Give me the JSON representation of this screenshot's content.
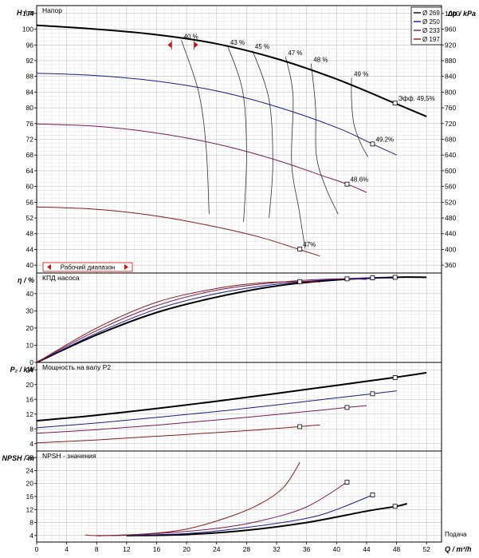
{
  "chart_data": {
    "type": "line",
    "x_axis": {
      "label": "Q / m³/h",
      "caption": "Подача",
      "range": [
        0,
        54
      ],
      "ticks": [
        0,
        4,
        8,
        12,
        16,
        20,
        24,
        28,
        32,
        36,
        40,
        44,
        48,
        52
      ]
    },
    "legend": {
      "placement": "top-right",
      "entries": [
        {
          "label": "Ø 269",
          "color": "#000000"
        },
        {
          "label": "Ø 250",
          "color": "#1c1c8c"
        },
        {
          "label": "Ø 233",
          "color": "#7a1a5a"
        },
        {
          "label": "Ø 197",
          "color": "#8b1a1a"
        }
      ]
    },
    "panels": [
      {
        "id": "head",
        "title": "Напор",
        "ylabel": "H / m",
        "y2label": "Δp / kPa",
        "ylim": [
          38,
          106
        ],
        "y_ticks": [
          40,
          44,
          48,
          52,
          56,
          60,
          64,
          68,
          72,
          76,
          80,
          84,
          88,
          92,
          96,
          100,
          104
        ],
        "y2_ticks": [
          360,
          400,
          440,
          480,
          520,
          560,
          600,
          640,
          680,
          720,
          760,
          800,
          840,
          880,
          920,
          960,
          1000
        ],
        "series": [
          {
            "name": "Ø 269",
            "color": "#000000",
            "x": [
              0,
              8,
              16,
              24,
              32,
              40,
              48,
              52
            ],
            "y": [
              101,
              100,
              98.6,
              96.3,
              92.5,
              87.3,
              81,
              77.8
            ]
          },
          {
            "name": "Ø 250",
            "color": "#1c1c8c",
            "x": [
              0,
              8,
              16,
              24,
              32,
              40,
              44.8,
              48
            ],
            "y": [
              88.8,
              88.2,
              86.8,
              84.3,
              80.3,
              75,
              70.8,
              68
            ]
          },
          {
            "name": "Ø 233",
            "color": "#7a1a5a",
            "x": [
              0,
              8,
              16,
              24,
              32,
              38,
              41.4,
              44
            ],
            "y": [
              75.9,
              75.3,
              73.6,
              70.8,
              66.7,
              62.8,
              60.6,
              58.5
            ]
          },
          {
            "name": "Ø 197",
            "color": "#8b1a1a",
            "x": [
              0,
              8,
              16,
              24,
              30,
              35,
              37.8
            ],
            "y": [
              54.8,
              54.2,
              52.5,
              49.7,
              47,
              44,
              42.3
            ]
          }
        ],
        "efficiency_lines": [
          {
            "label": "40 %",
            "x": [
              19.3,
              21.6,
              22.6,
              23
            ],
            "y": [
              97.2,
              84,
              70,
              53
            ]
          },
          {
            "label": "43 %",
            "x": [
              25.5,
              27.5,
              28,
              27.6
            ],
            "y": [
              95.6,
              84,
              68,
              51
            ]
          },
          {
            "label": "45 %",
            "x": [
              28.8,
              31,
              31.5,
              31
            ],
            "y": [
              94.6,
              82,
              66,
              52
            ]
          },
          {
            "label": "47 %",
            "x": [
              33.2,
              34.2,
              34,
              35,
              35.8
            ],
            "y": [
              93,
              83,
              66,
              54,
              44.2
            ]
          },
          {
            "label": "48 %",
            "x": [
              36.6,
              37.2,
              37.3,
              38.5,
              40.2
            ],
            "y": [
              91.3,
              80,
              68,
              60,
              53
            ]
          },
          {
            "label": "49 %",
            "x": [
              42,
              42,
              42.3,
              43.2,
              44.2
            ],
            "y": [
              87.6,
              82,
              76,
              71,
              67.5
            ]
          }
        ],
        "bep_labels": [
          {
            "label": "Эфф. 49,5%",
            "x": 47.8,
            "y": 81.2
          },
          {
            "label": "49.2%",
            "x": 44.8,
            "y": 70.8
          },
          {
            "label": "48.6%",
            "x": 41.4,
            "y": 60.6
          },
          {
            "label": "47%",
            "x": 35.1,
            "y": 44.1
          }
        ],
        "operating_range": {
          "label": "Рабочий диапазон",
          "x": [
            18,
            21
          ]
        }
      },
      {
        "id": "efficiency",
        "title": "КПД насоса",
        "ylabel": "η / %",
        "ylim": [
          0,
          52
        ],
        "y_ticks": [
          0,
          10,
          20,
          30,
          40
        ],
        "series": [
          {
            "name": "Ø 269",
            "color": "#000000",
            "x": [
              0,
              8,
              16,
              24,
              32,
              40,
              48,
              52
            ],
            "y": [
              0,
              16,
              29,
              38,
              44.5,
              48,
              49.5,
              49.5
            ]
          },
          {
            "name": "Ø 250",
            "color": "#1c1c8c",
            "x": [
              0,
              8,
              16,
              24,
              32,
              40,
              44.8,
              48
            ],
            "y": [
              0,
              17,
              31,
              40,
              45.5,
              48.4,
              49.2,
              49
            ]
          },
          {
            "name": "Ø 233",
            "color": "#7a1a5a",
            "x": [
              0,
              8,
              16,
              24,
              32,
              38,
              41.4,
              44
            ],
            "y": [
              0,
              18.5,
              33,
              42,
              46.5,
              48.3,
              48.6,
              48.3
            ]
          },
          {
            "name": "Ø 197",
            "color": "#8b1a1a",
            "x": [
              0,
              8,
              16,
              24,
              30,
              35,
              37.8
            ],
            "y": [
              0,
              20,
              35,
              43,
              46.3,
              47,
              46.8
            ]
          }
        ],
        "markers": [
          {
            "x": 35.1,
            "y": 47
          },
          {
            "x": 41.4,
            "y": 48.6
          },
          {
            "x": 44.8,
            "y": 49.2
          },
          {
            "x": 47.8,
            "y": 49.5
          }
        ]
      },
      {
        "id": "power",
        "title": "Мощность на валу P2",
        "ylabel": "P₂ / kW",
        "ylim": [
          2,
          26
        ],
        "y_ticks": [
          4,
          8,
          12,
          16,
          20,
          24
        ],
        "series": [
          {
            "name": "Ø 269",
            "color": "#000000",
            "x": [
              0,
              8,
              16,
              24,
              32,
              40,
              48,
              52
            ],
            "y": [
              10.2,
              11.7,
              13.5,
              15.5,
              17.6,
              19.8,
              22,
              23.2
            ]
          },
          {
            "name": "Ø 250",
            "color": "#1c1c8c",
            "x": [
              0,
              8,
              16,
              24,
              32,
              40,
              44.8,
              48
            ],
            "y": [
              8.3,
              9.6,
              11.1,
              12.7,
              14.5,
              16.4,
              17.5,
              18.3
            ]
          },
          {
            "name": "Ø 233",
            "color": "#7a1a5a",
            "x": [
              0,
              8,
              16,
              24,
              32,
              38,
              41.4,
              44
            ],
            "y": [
              6.8,
              7.8,
              9,
              10.4,
              11.9,
              13.1,
              13.8,
              14.3
            ]
          },
          {
            "name": "Ø 197",
            "color": "#8b1a1a",
            "x": [
              0,
              8,
              16,
              24,
              30,
              35,
              37.8
            ],
            "y": [
              4.2,
              5,
              6,
              7,
              7.8,
              8.6,
              9.1
            ]
          }
        ],
        "markers": [
          {
            "x": 35.1,
            "y": 8.6
          },
          {
            "x": 41.4,
            "y": 13.8
          },
          {
            "x": 44.8,
            "y": 17.5
          },
          {
            "x": 47.8,
            "y": 21.9
          }
        ]
      },
      {
        "id": "npsh",
        "title": "NPSH - значения",
        "ylabel": "NPSH / m",
        "ylim": [
          2,
          30
        ],
        "y_ticks": [
          4,
          8,
          12,
          16,
          20,
          24,
          28
        ],
        "series": [
          {
            "name": "Ø 269",
            "color": "#000000",
            "x": [
              12,
              20,
              28,
              36,
              44,
              48,
              49.4
            ],
            "y": [
              4,
              4.3,
              5.6,
              8,
              11.5,
              13,
              13.8
            ]
          },
          {
            "name": "Ø 250",
            "color": "#1c1c8c",
            "x": [
              10,
              20,
              28,
              36,
              40,
              44.8
            ],
            "y": [
              4,
              4.6,
              6.5,
              9.3,
              12,
              16.5
            ]
          },
          {
            "name": "Ø 233",
            "color": "#7a1a5a",
            "x": [
              8,
              16,
              24,
              30,
              36,
              41.4
            ],
            "y": [
              3.9,
              4.6,
              6.2,
              8.6,
              12.8,
              20.4
            ]
          },
          {
            "name": "Ø 197",
            "color": "#8b1a1a",
            "x": [
              6.5,
              8,
              14,
              20,
              26,
              30,
              33,
              35.1
            ],
            "y": [
              4.2,
              4,
              4.4,
              6,
              10,
              14,
              19,
              26.5
            ]
          }
        ],
        "markers": [
          {
            "x": 41.4,
            "y": 20.4
          },
          {
            "x": 44.8,
            "y": 16.5
          },
          {
            "x": 47.8,
            "y": 13
          }
        ]
      }
    ]
  }
}
